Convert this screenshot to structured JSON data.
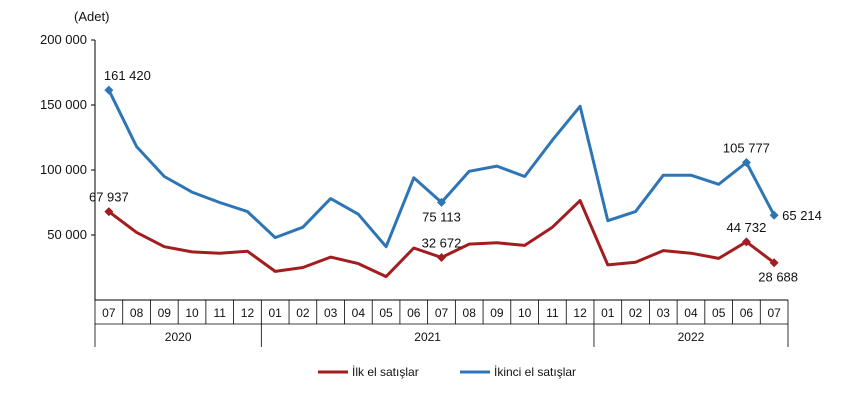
{
  "chart_data": {
    "type": "line",
    "unit_label": "(Adet)",
    "ylim": [
      0,
      200000
    ],
    "yticks": [
      {
        "value": 50000,
        "label": "50 000"
      },
      {
        "value": 100000,
        "label": "100 000"
      },
      {
        "value": 150000,
        "label": "150 000"
      },
      {
        "value": 200000,
        "label": "200 000"
      }
    ],
    "categories": [
      "07",
      "08",
      "09",
      "10",
      "11",
      "12",
      "01",
      "02",
      "03",
      "04",
      "05",
      "06",
      "07",
      "08",
      "09",
      "10",
      "11",
      "12",
      "01",
      "02",
      "03",
      "04",
      "05",
      "06",
      "07"
    ],
    "year_groups": [
      {
        "label": "2020",
        "start": 0,
        "end": 5
      },
      {
        "label": "2021",
        "start": 6,
        "end": 17
      },
      {
        "label": "2022",
        "start": 18,
        "end": 24
      }
    ],
    "series": [
      {
        "name": "İlk el satışlar",
        "color": "#a31d1f",
        "values": [
          67937,
          52000,
          41000,
          37000,
          36000,
          37500,
          22000,
          25000,
          33000,
          28000,
          18000,
          40000,
          32672,
          43000,
          44000,
          42000,
          56000,
          76500,
          27000,
          29000,
          38000,
          36000,
          32000,
          44732,
          28688
        ],
        "labels": [
          {
            "index": 0,
            "text": "67 937",
            "pos": "above"
          },
          {
            "index": 12,
            "text": "32 672",
            "pos": "above"
          },
          {
            "index": 23,
            "text": "44 732",
            "pos": "above-left"
          },
          {
            "index": 24,
            "text": "28 688",
            "pos": "below"
          }
        ]
      },
      {
        "name": "İkinci el satışlar",
        "color": "#2e75b6",
        "values": [
          161420,
          118000,
          95000,
          83000,
          75000,
          68000,
          48000,
          56000,
          78000,
          66000,
          41000,
          94000,
          75113,
          99000,
          103000,
          95000,
          123000,
          149000,
          61000,
          68000,
          96000,
          96000,
          89000,
          105777,
          65214
        ],
        "labels": [
          {
            "index": 0,
            "text": "161 420",
            "pos": "above-right"
          },
          {
            "index": 12,
            "text": "75 113",
            "pos": "below"
          },
          {
            "index": 23,
            "text": "105 777",
            "pos": "above"
          },
          {
            "index": 24,
            "text": "65 214",
            "pos": "right"
          }
        ]
      }
    ]
  }
}
